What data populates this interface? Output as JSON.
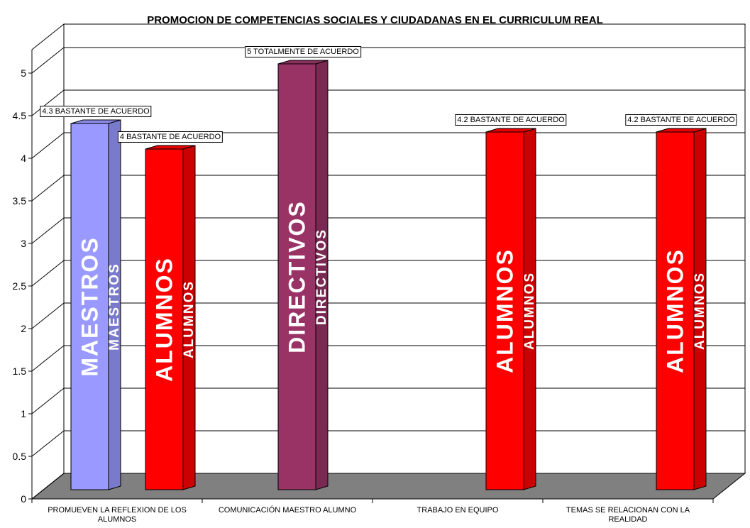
{
  "chart_data": {
    "type": "bar3d",
    "title": "PROMOCION DE COMPETENCIAS SOCIALES Y CIUDADANAS EN EL CURRICULUM REAL",
    "categories": [
      "PROMUEVEN LA REFLEXION DE LOS ALUMNOS",
      "COMUNICACIÓN MAESTRO ALUMNO",
      "TRABAJO EN EQUIPO",
      "TEMAS SE RELACIONAN CON LA REALIDAD"
    ],
    "series": [
      {
        "name": "MAESTROS",
        "color": "#9999ff",
        "values": [
          4.3,
          null,
          null,
          null
        ],
        "value_labels": [
          "4.3 BASTANTE DE ACUERDO",
          null,
          null,
          null
        ]
      },
      {
        "name": "DIRECTIVOS",
        "color": "#993366",
        "values": [
          null,
          5,
          null,
          null
        ],
        "value_labels": [
          null,
          "5 TOTALMENTE DE ACUERDO",
          null,
          null
        ]
      },
      {
        "name": "ALUMNOS",
        "color": "#ff0000",
        "values": [
          4,
          null,
          4.2,
          4.2
        ],
        "value_labels": [
          "4 BASTANTE DE ACUERDO",
          null,
          "4.2 BASTANTE DE ACUERDO",
          "4.2 BASTANTE DE ACUERDO"
        ]
      }
    ],
    "ylim": [
      0,
      5
    ],
    "yticks": [
      0,
      0.5,
      1,
      1.5,
      2,
      2.5,
      3,
      3.5,
      4,
      4.5,
      5
    ],
    "grid": true
  }
}
